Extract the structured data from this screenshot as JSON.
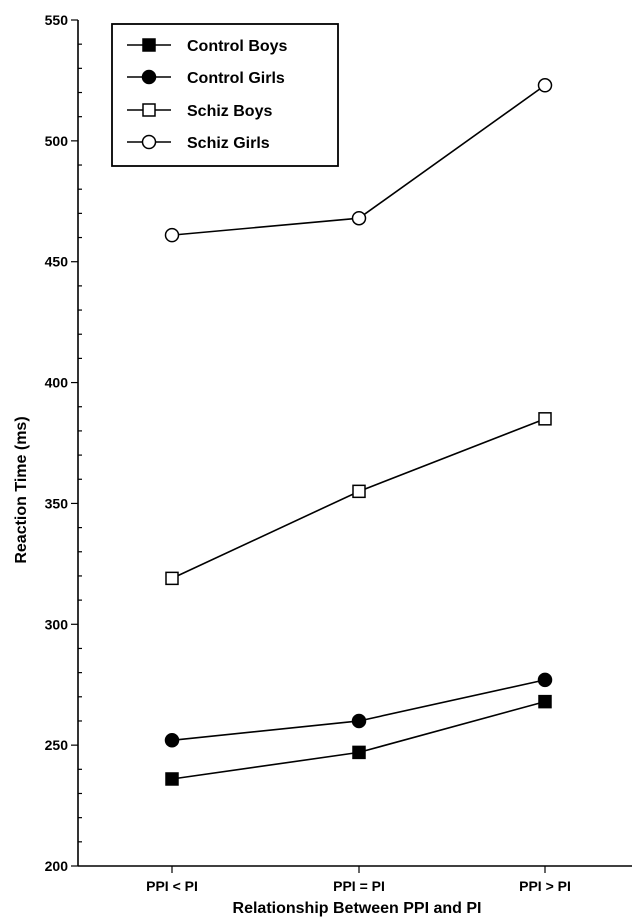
{
  "chart_data": {
    "type": "line",
    "xlabel": "Relationship Between PPI and PI",
    "ylabel": "Reaction Time (ms)",
    "categories": [
      "PPI < PI",
      "PPI = PI",
      "PPI > PI"
    ],
    "ylim": [
      200,
      550
    ],
    "yticks": [
      200,
      250,
      300,
      350,
      400,
      450,
      500,
      550
    ],
    "yticks_labels": [
      "200",
      "250",
      "300",
      "350",
      "400",
      "450",
      "500",
      "550"
    ],
    "grid": false,
    "legend_position": "top-left",
    "series": [
      {
        "name": "Control Boys",
        "marker": "filled-square",
        "values": [
          236,
          247,
          268
        ]
      },
      {
        "name": "Control Girls",
        "marker": "filled-circle",
        "values": [
          252,
          260,
          277
        ]
      },
      {
        "name": "Schiz Boys",
        "marker": "open-square",
        "values": [
          319,
          355,
          385
        ]
      },
      {
        "name": "Schiz Girls",
        "marker": "open-circle",
        "values": [
          461,
          468,
          523
        ]
      }
    ]
  }
}
